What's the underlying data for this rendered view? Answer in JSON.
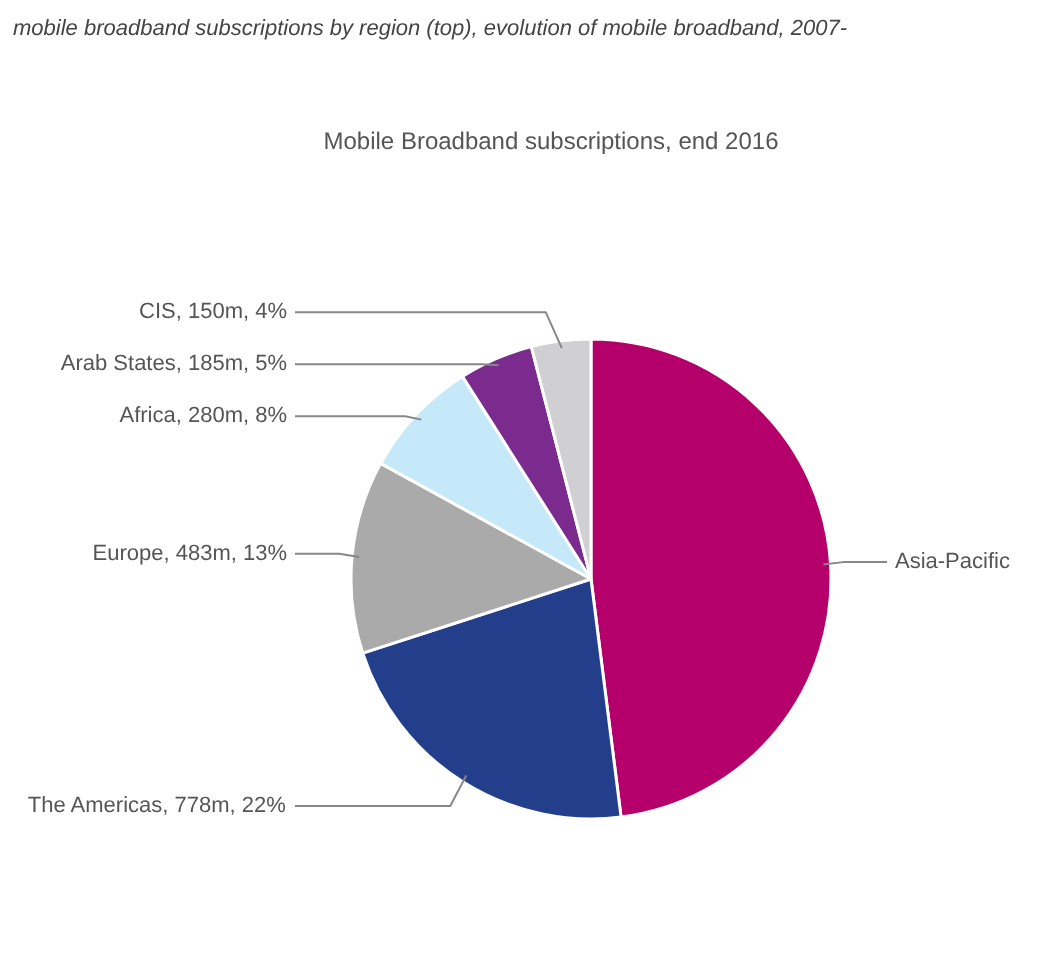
{
  "chart_data": {
    "type": "pie",
    "title": "mobile broadband subscriptions by region (top), evolution of mobile broadband, 2007-",
    "subtitle": "Mobile Broadband subscriptions, end 2016",
    "categories": [
      "Asia-Pacific",
      "The Americas",
      "Europe",
      "Africa",
      "Arab States",
      "CIS"
    ],
    "values": [
      48,
      22,
      13,
      8,
      5,
      4
    ],
    "value_labels": [
      null,
      "778m, 22%",
      "483m, 13%",
      "280m, 8%",
      "185m, 5%",
      "150m, 4%"
    ],
    "colors": [
      "#b5006b",
      "#233f8b",
      "#aaaaaa",
      "#c6e9f9",
      "#7b2a8e",
      "#d0d0d2"
    ]
  }
}
